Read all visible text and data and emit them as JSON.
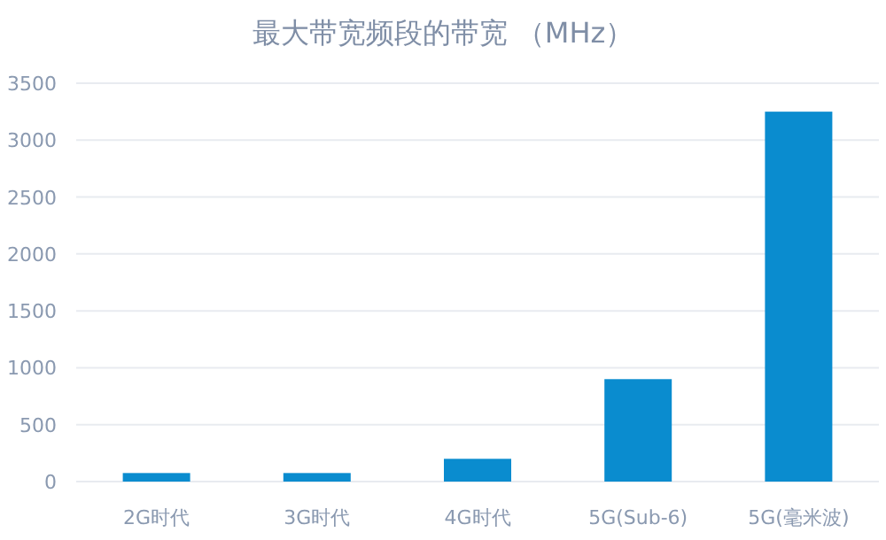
{
  "chart_data": {
    "type": "bar",
    "title": "最大带宽频段的带宽 （MHz）",
    "categories": [
      "2G时代",
      "3G时代",
      "4G时代",
      "5G(Sub-6)",
      "5G(毫米波)"
    ],
    "values": [
      75,
      75,
      200,
      900,
      3250
    ],
    "color": "#0a8ccf",
    "ylim": [
      0,
      3500
    ],
    "yticks": [
      0,
      500,
      1000,
      1500,
      2000,
      2500,
      3000,
      3500
    ],
    "grid": "y",
    "legend": false
  }
}
